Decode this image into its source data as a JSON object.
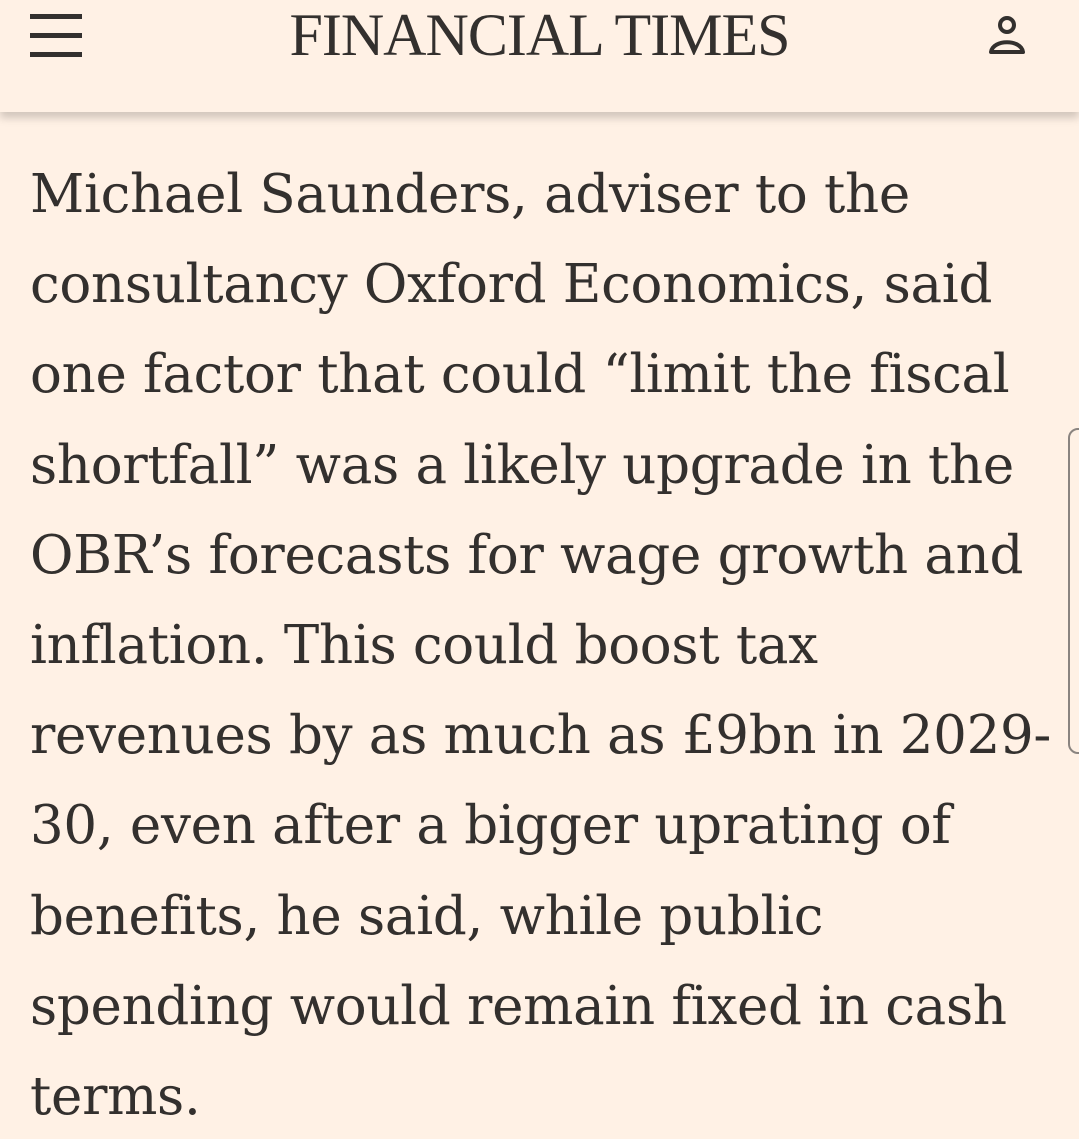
{
  "header": {
    "menu_icon": "hamburger-menu-icon",
    "masthead": "FINANCIAL TIMES",
    "account_icon": "user-icon"
  },
  "article": {
    "paragraph": "Michael Saunders, adviser to the consultancy Oxford Economics, said one factor that could “limit the fiscal shortfall” was a likely upgrade in the OBR’s forecasts for wage growth and inflation. This could boost tax revenues by as much as £9bn in 2029-30, even after a bigger uprating of benefits, he said, while public spending would remain fixed in cash terms.",
    "lines": [
      "Michael Saunders, adviser to the",
      "consultancy Oxford Economics, said",
      "one factor that could “limit the fiscal",
      "shortfall” was a likely upgrade in the",
      "OBR’s forecasts for wage growth and",
      "inflation. This could boost tax",
      "revenues by as much as £9bn in 2029-",
      "30, even after a bigger uprating of",
      "benefits, he said, while public",
      "spending would remain fixed in cash",
      "terms."
    ]
  },
  "colors": {
    "background": "#fff1e5",
    "text": "#33302e"
  }
}
